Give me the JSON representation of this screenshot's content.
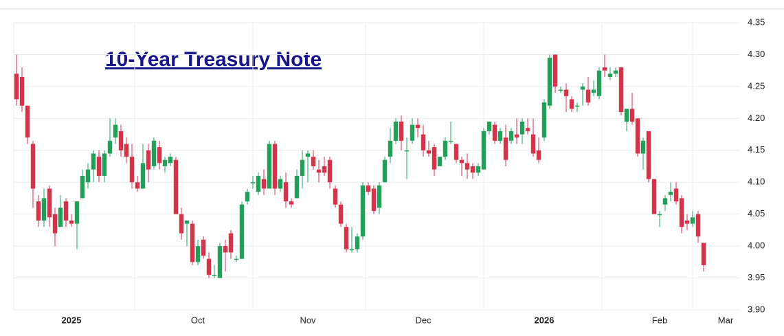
{
  "chart_data": {
    "type": "candlestick",
    "title": "10-Year Treasury Note",
    "categories": [
      null,
      null,
      null,
      null,
      null,
      null,
      null,
      null,
      null,
      null,
      "2025",
      null,
      null,
      null,
      null,
      null,
      null,
      null,
      null,
      null,
      null,
      null,
      null,
      null,
      null,
      null,
      null,
      null,
      null,
      null,
      null,
      null,
      null,
      "Oct",
      null,
      null,
      null,
      null,
      null,
      null,
      null,
      null,
      null,
      null,
      null,
      null,
      null,
      null,
      null,
      null,
      null,
      null,
      null,
      "Nov",
      null,
      null,
      null,
      null,
      null,
      null,
      null,
      null,
      null,
      null,
      null,
      null,
      null,
      null,
      null,
      null,
      null,
      null,
      null,
      null,
      "Dec",
      null,
      null,
      null,
      null,
      null,
      null,
      null,
      null,
      null,
      null,
      null,
      null,
      null,
      null,
      null,
      null,
      null,
      null,
      null,
      null,
      null,
      "2026",
      null,
      null,
      null,
      null,
      null,
      null,
      null,
      null,
      null,
      null,
      null,
      null,
      null,
      null,
      null,
      null,
      null,
      null,
      null,
      null,
      "Feb",
      null,
      null,
      null,
      null,
      null,
      null,
      null,
      null,
      null,
      null,
      null,
      "Mar"
    ],
    "open": [
      4.27,
      4.265,
      4.22,
      4.16,
      4.07,
      4.04,
      4.09,
      4.05,
      4.03,
      4.07,
      4.04,
      4.035,
      4.075,
      4.1,
      4.12,
      4.14,
      4.11,
      4.145,
      4.17,
      4.18,
      4.16,
      4.14,
      4.1,
      4.09,
      4.15,
      4.125,
      4.155,
      4.125,
      4.13,
      4.135,
      4.05,
      4.035,
      4.035,
      3.975,
      4.01,
      3.98,
      3.955,
      3.95,
      4.0,
      4.02,
      3.98,
      3.98,
      4.07,
      4.1,
      4.085,
      4.105,
      4.09,
      4.16,
      4.09,
      4.1,
      4.07,
      4.075,
      4.11,
      4.14,
      4.14,
      4.12,
      4.125,
      4.135,
      4.09,
      4.065,
      4.03,
      3.995,
      3.995,
      4.015,
      4.095,
      4.09,
      4.06,
      4.1,
      4.14,
      4.165,
      4.195,
      4.15,
      4.165,
      4.19,
      4.175,
      4.15,
      4.155,
      4.125,
      4.14,
      4.165,
      4.16,
      4.135,
      4.13,
      4.125,
      4.115,
      4.12,
      4.18,
      4.19,
      4.165,
      4.17,
      4.165,
      4.175,
      4.175,
      4.185,
      4.175,
      4.15,
      4.17,
      4.22,
      4.3,
      4.245,
      4.245,
      4.23,
      4.22,
      4.245,
      4.245,
      4.24,
      4.235,
      4.28,
      4.265,
      4.27,
      4.28,
      4.195,
      4.215,
      4.2,
      4.145,
      4.18,
      4.105,
      4.05,
      4.065,
      4.08,
      4.09,
      4.075,
      4.04,
      4.035,
      4.05,
      4.005,
      null,
      null,
      null,
      null
    ],
    "high": [
      4.3,
      4.28,
      4.22,
      4.165,
      4.08,
      4.09,
      4.095,
      4.06,
      4.08,
      4.075,
      4.05,
      4.07,
      4.12,
      4.13,
      4.15,
      4.15,
      4.15,
      4.2,
      4.2,
      4.19,
      4.17,
      4.16,
      4.11,
      4.16,
      4.16,
      4.17,
      4.165,
      4.14,
      4.145,
      4.14,
      4.06,
      4.04,
      4.04,
      4.01,
      4.015,
      3.99,
      3.97,
      4.005,
      4.01,
      4.025,
      3.985,
      4.07,
      4.09,
      4.11,
      4.115,
      4.12,
      4.165,
      4.165,
      4.11,
      4.115,
      4.075,
      4.12,
      4.15,
      4.15,
      4.15,
      4.135,
      4.14,
      4.14,
      4.095,
      4.07,
      4.035,
      4.03,
      4.02,
      4.1,
      4.1,
      4.095,
      4.1,
      4.14,
      4.185,
      4.2,
      4.205,
      4.17,
      4.2,
      4.2,
      4.19,
      4.165,
      4.16,
      4.14,
      4.17,
      4.195,
      4.16,
      4.14,
      4.145,
      4.13,
      4.13,
      4.185,
      4.195,
      4.195,
      4.185,
      4.19,
      4.185,
      4.2,
      4.2,
      4.2,
      4.2,
      4.17,
      4.23,
      4.3,
      4.3,
      4.25,
      4.255,
      4.235,
      4.225,
      4.255,
      4.265,
      4.26,
      4.28,
      4.3,
      4.28,
      4.28,
      4.28,
      4.215,
      4.24,
      4.2,
      4.17,
      4.18,
      4.105,
      4.055,
      4.08,
      4.1,
      4.1,
      4.08,
      4.05,
      4.055,
      4.055,
      4.005,
      null,
      null,
      null,
      null
    ],
    "low": [
      4.22,
      4.21,
      4.16,
      4.06,
      4.03,
      4.03,
      4.03,
      4.0,
      4.03,
      4.03,
      4.03,
      3.995,
      4.075,
      4.09,
      4.1,
      4.1,
      4.1,
      4.14,
      4.16,
      4.14,
      4.13,
      4.09,
      4.085,
      4.09,
      4.1,
      4.12,
      4.12,
      4.115,
      4.125,
      4.05,
      4.01,
      4.0,
      3.97,
      3.97,
      3.98,
      3.95,
      3.95,
      3.95,
      3.96,
      3.98,
      3.975,
      3.98,
      4.065,
      4.09,
      4.08,
      4.08,
      4.09,
      4.08,
      4.085,
      4.06,
      4.06,
      4.075,
      4.09,
      4.1,
      4.12,
      4.1,
      4.11,
      4.09,
      4.06,
      4.03,
      3.99,
      3.99,
      3.99,
      4.01,
      4.08,
      4.05,
      4.05,
      4.1,
      4.13,
      4.16,
      4.15,
      4.105,
      4.16,
      4.17,
      4.14,
      4.14,
      4.11,
      4.125,
      4.135,
      4.16,
      4.13,
      4.11,
      4.105,
      4.105,
      4.11,
      4.12,
      4.175,
      4.16,
      4.16,
      4.125,
      4.16,
      4.16,
      4.16,
      4.175,
      4.14,
      4.13,
      4.165,
      4.215,
      4.24,
      4.24,
      4.21,
      4.21,
      4.21,
      4.22,
      4.22,
      4.235,
      4.23,
      4.265,
      4.26,
      4.265,
      4.205,
      4.18,
      4.19,
      4.14,
      4.12,
      4.1,
      4.05,
      4.03,
      4.055,
      4.07,
      4.065,
      4.02,
      4.025,
      4.03,
      4.005,
      3.96,
      null,
      null,
      null,
      null
    ],
    "close": [
      4.23,
      4.22,
      4.17,
      4.09,
      4.04,
      4.075,
      4.045,
      4.02,
      4.06,
      4.04,
      4.035,
      4.07,
      4.11,
      4.12,
      4.145,
      4.11,
      4.145,
      4.165,
      4.19,
      4.15,
      4.14,
      4.1,
      4.09,
      4.13,
      4.12,
      4.165,
      4.13,
      4.135,
      4.14,
      4.05,
      4.02,
      4.04,
      3.975,
      4.0,
      3.985,
      3.955,
      3.955,
      4.0,
      3.99,
      3.99,
      3.98,
      4.065,
      4.085,
      4.1,
      4.11,
      4.09,
      4.16,
      4.09,
      4.105,
      4.07,
      4.065,
      4.11,
      4.135,
      4.145,
      4.125,
      4.115,
      4.115,
      4.1,
      4.065,
      4.035,
      3.995,
      3.995,
      4.015,
      4.095,
      4.085,
      4.055,
      4.095,
      4.135,
      4.165,
      4.195,
      4.165,
      4.15,
      4.19,
      4.185,
      4.15,
      4.145,
      4.12,
      4.14,
      4.165,
      4.165,
      4.135,
      4.13,
      4.12,
      4.115,
      4.125,
      4.18,
      4.195,
      4.165,
      4.18,
      4.135,
      4.18,
      4.17,
      4.195,
      4.18,
      4.145,
      4.135,
      4.225,
      4.295,
      4.25,
      4.245,
      4.235,
      4.215,
      4.22,
      4.25,
      4.225,
      4.245,
      4.275,
      4.275,
      4.27,
      4.275,
      4.21,
      4.215,
      4.195,
      4.145,
      4.165,
      4.105,
      4.05,
      4.05,
      4.075,
      4.085,
      4.07,
      4.03,
      4.035,
      4.045,
      4.015,
      3.97,
      null,
      null,
      null,
      null
    ],
    "up_color": "#22a05a",
    "down_color": "#d8324a",
    "ylim": [
      3.9,
      4.35
    ],
    "yticks": [
      {
        "value": 3.9,
        "label": "3.90"
      },
      3.95,
      {
        "value": 4.0,
        "label": "4.00"
      },
      4.05,
      {
        "value": 4.1,
        "label": "4.10"
      },
      4.15,
      {
        "value": 4.2,
        "label": "4.20"
      },
      4.25,
      {
        "value": 4.3,
        "label": "4.30"
      },
      4.35
    ],
    "grid": true
  }
}
